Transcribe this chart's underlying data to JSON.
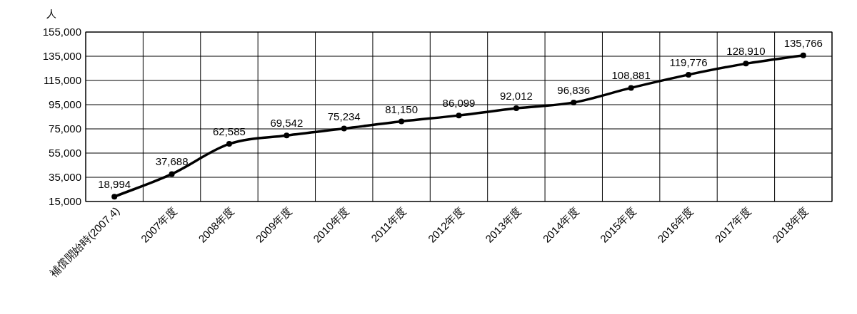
{
  "chart_data": {
    "type": "line",
    "ylabel": "人",
    "categories": [
      "補償開始時(2007.4)",
      "2007年度",
      "2008年度",
      "2009年度",
      "2010年度",
      "2011年度",
      "2012年度",
      "2013年度",
      "2014年度",
      "2015年度",
      "2016年度",
      "2017年度",
      "2018年度"
    ],
    "series": [
      {
        "color": "#000000",
        "values": [
          18994,
          37688,
          62585,
          69542,
          75234,
          81150,
          86099,
          92012,
          96836,
          108881,
          119776,
          128910,
          135766
        ],
        "value_labels": [
          "18,994",
          "37,688",
          "62,585",
          "69,542",
          "75,234",
          "81,150",
          "86,099",
          "92,012",
          "96,836",
          "108,881",
          "119,776",
          "128,910",
          "135,766"
        ]
      }
    ],
    "ylim": [
      15000,
      155000
    ],
    "yticks": [
      {
        "value": 15000,
        "label": "15,000"
      },
      {
        "value": 35000,
        "label": "35,000"
      },
      {
        "value": 55000,
        "label": "55,000"
      },
      {
        "value": 75000,
        "label": "75,000"
      },
      {
        "value": 95000,
        "label": "95,000"
      },
      {
        "value": 115000,
        "label": "115,000"
      },
      {
        "value": 135000,
        "label": "135,000"
      },
      {
        "value": 155000,
        "label": "155,000"
      }
    ],
    "grid": true,
    "marker": "circle"
  }
}
